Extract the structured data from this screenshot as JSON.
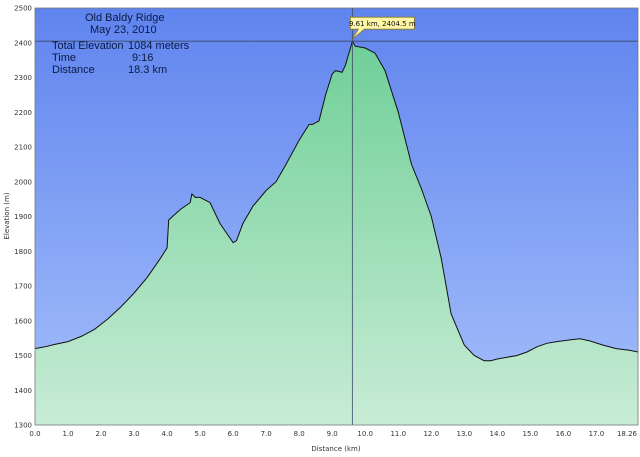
{
  "colors": {
    "sky_top": "#5f84ee",
    "sky_bottom": "#a6c0fb",
    "fill_top": "#6fcf97",
    "fill_bottom": "#c8ecd6",
    "outline": "#111111",
    "marker_line": "#3a4a66",
    "callout_bg": "#fff6a8",
    "callout_border": "#8a7a20"
  },
  "header": {
    "title": "Old Baldy Ridge",
    "date": "May 23, 2010"
  },
  "stats": [
    {
      "label": "Total Elevation",
      "value": "1084 meters"
    },
    {
      "label": "Time",
      "value": "9:16"
    },
    {
      "label": "Distance",
      "value": "18.3 km"
    }
  ],
  "callout": {
    "text": "9.61 km, 2404.5 m",
    "x": 9.61,
    "y": 2404.5
  },
  "chart_data": {
    "type": "area",
    "title": "Old Baldy Ridge",
    "xlabel": "Distance  (km)",
    "ylabel": "Elevation (m)",
    "xlim": [
      0,
      18.26
    ],
    "ylim": [
      1300,
      2500
    ],
    "xticks": [
      "0.0",
      "1.0",
      "2.0",
      "3.0",
      "4.0",
      "5.0",
      "6.0",
      "7.0",
      "8.0",
      "9.0",
      "10.0",
      "11.0",
      "12.0",
      "13.0",
      "14.0",
      "15.0",
      "16.0",
      "17.0",
      "18.26"
    ],
    "xtick_values": [
      0,
      1,
      2,
      3,
      4,
      5,
      6,
      7,
      8,
      9,
      10,
      11,
      12,
      13,
      14,
      15,
      16,
      17,
      18.26
    ],
    "yticks": [
      "1300",
      "1400",
      "1500",
      "1600",
      "1700",
      "1800",
      "1900",
      "2000",
      "2100",
      "2200",
      "2300",
      "2400",
      "2500"
    ],
    "ytick_values": [
      1300,
      1400,
      1500,
      1600,
      1700,
      1800,
      1900,
      2000,
      2100,
      2200,
      2300,
      2400,
      2500
    ],
    "grid": false,
    "x": [
      0,
      0.3,
      0.6,
      1.0,
      1.4,
      1.8,
      2.2,
      2.6,
      3.0,
      3.4,
      3.8,
      4.0,
      4.05,
      4.4,
      4.7,
      4.75,
      4.85,
      5.0,
      5.3,
      5.6,
      6.0,
      6.1,
      6.3,
      6.6,
      7.0,
      7.3,
      7.6,
      8.0,
      8.3,
      8.4,
      8.6,
      8.8,
      9.0,
      9.1,
      9.3,
      9.4,
      9.61,
      9.7,
      10.0,
      10.3,
      10.6,
      11.0,
      11.4,
      11.7,
      12.0,
      12.3,
      12.6,
      13.0,
      13.3,
      13.6,
      13.8,
      14.0,
      14.3,
      14.6,
      14.9,
      15.2,
      15.5,
      15.8,
      16.2,
      16.5,
      16.8,
      17.2,
      17.6,
      18.0,
      18.26
    ],
    "y": [
      1520,
      1525,
      1532,
      1540,
      1555,
      1575,
      1605,
      1640,
      1680,
      1725,
      1780,
      1810,
      1890,
      1920,
      1940,
      1965,
      1955,
      1955,
      1940,
      1880,
      1825,
      1830,
      1880,
      1930,
      1975,
      2000,
      2050,
      2120,
      2165,
      2165,
      2175,
      2250,
      2310,
      2320,
      2315,
      2335,
      2404,
      2390,
      2385,
      2370,
      2320,
      2200,
      2050,
      1980,
      1900,
      1780,
      1620,
      1530,
      1500,
      1485,
      1485,
      1490,
      1495,
      1500,
      1510,
      1525,
      1535,
      1540,
      1545,
      1548,
      1542,
      1530,
      1520,
      1515,
      1510
    ]
  }
}
